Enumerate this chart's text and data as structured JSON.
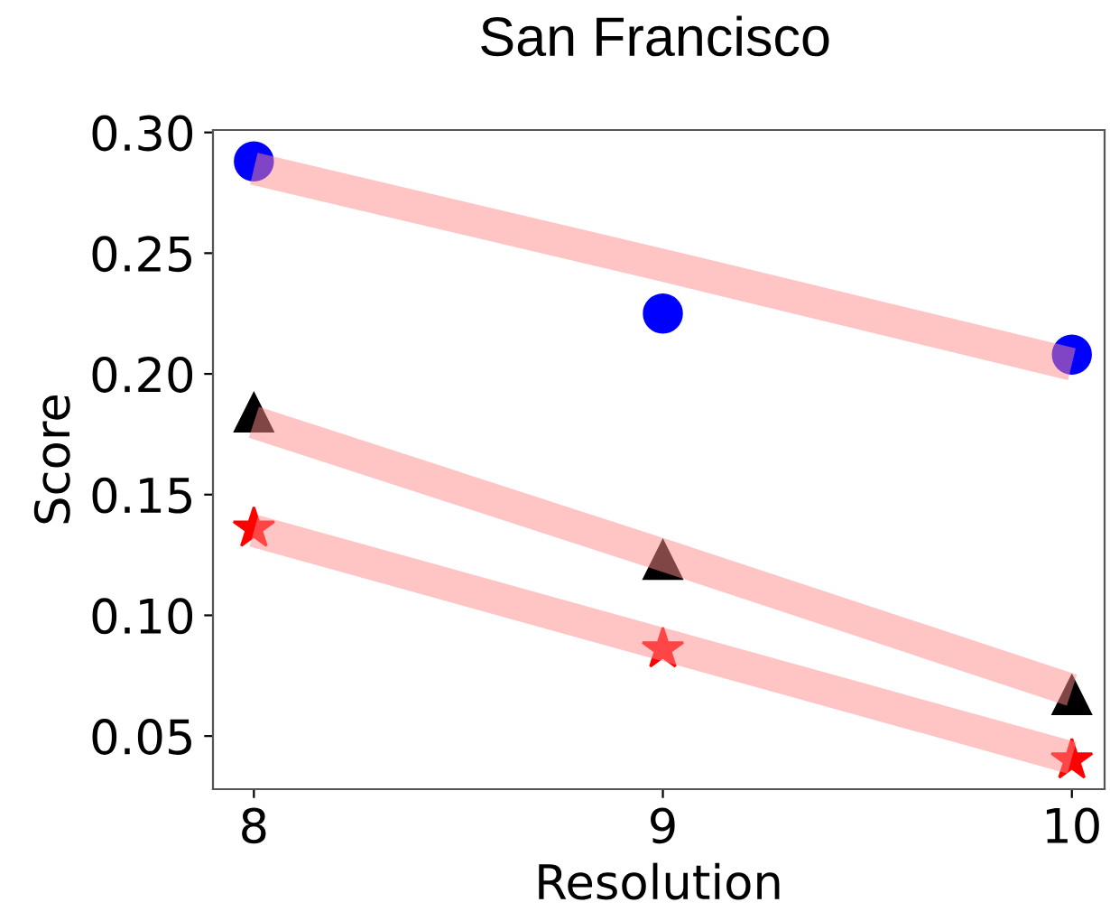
{
  "chart_data": {
    "type": "scatter",
    "title": "San Francisco",
    "xlabel": "Resolution",
    "ylabel": "Score",
    "x": [
      8,
      9,
      10
    ],
    "series": [
      {
        "type": "line",
        "values": [
          0.285,
          0.245,
          0.204
        ],
        "color": "#ffc4c4",
        "marker": "none"
      },
      {
        "type": "line",
        "values": [
          0.18,
          0.125,
          0.069
        ],
        "color": "#ffc4c4",
        "marker": "none"
      },
      {
        "type": "line",
        "values": [
          0.135,
          0.088,
          0.041
        ],
        "color": "#ffc4c4",
        "marker": "none"
      },
      {
        "color": "#0000ff",
        "marker": "circle",
        "values": [
          0.288,
          0.225,
          0.208
        ]
      },
      {
        "color": "#000000",
        "marker": "triangle",
        "values": [
          0.184,
          0.123,
          0.067
        ]
      },
      {
        "color": "#ff0000",
        "marker": "star",
        "values": [
          0.136,
          0.086,
          0.04
        ]
      }
    ],
    "xlim": [
      7.9,
      10.08
    ],
    "xticks": [
      8,
      9,
      10
    ],
    "ylim": [
      0.028,
      0.301
    ],
    "yticks": [
      {
        "value": 0.05,
        "label": "0.05"
      },
      {
        "value": 0.1,
        "label": "0.10"
      },
      {
        "value": 0.15,
        "label": "0.15"
      },
      {
        "value": 0.2,
        "label": "0.20"
      },
      {
        "value": 0.25,
        "label": "0.25"
      },
      {
        "value": 0.3,
        "label": "0.30"
      }
    ],
    "grid": false,
    "legend": false
  }
}
